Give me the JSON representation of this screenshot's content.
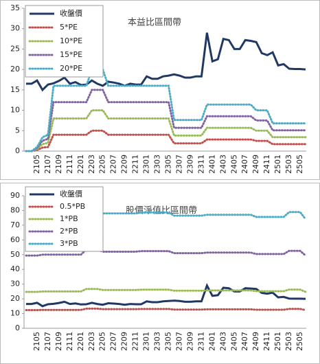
{
  "chart_data": [
    {
      "type": "line",
      "title": "本益比區間帶",
      "categories": [
        null,
        null,
        "2105",
        null,
        "2107",
        null,
        "2109",
        null,
        "2111",
        null,
        "2201",
        null,
        "2203",
        null,
        "2205",
        null,
        "2207",
        null,
        "2209",
        null,
        "2211",
        null,
        "2301",
        null,
        "2303",
        null,
        "2305",
        null,
        "2307",
        null,
        "2309",
        null,
        "2311",
        null,
        "2401",
        null,
        "2403",
        null,
        "2405",
        null,
        "2407",
        null,
        "2409",
        null,
        "2411",
        null,
        "2501",
        null,
        "2503",
        null,
        "2505",
        null
      ],
      "ylim": [
        0,
        35
      ],
      "yticks": [
        0,
        5,
        10,
        15,
        20,
        25,
        30,
        35
      ],
      "grid": false,
      "series": [
        {
          "name": "收盤價",
          "color": "#1f3864",
          "values": [
            16.5,
            16.5,
            17.3,
            15,
            16.3,
            16.6,
            17.2,
            18,
            16.5,
            16.9,
            16.2,
            16.3,
            17.3,
            16.5,
            16,
            17,
            16.8,
            16.5,
            16,
            16.5,
            16.3,
            16.3,
            18.3,
            17.7,
            17.7,
            18.3,
            18.5,
            18.8,
            18.5,
            18,
            18,
            18.3,
            18.3,
            29,
            22,
            22.5,
            27.5,
            27.2,
            25,
            25,
            27.2,
            27,
            26.7,
            24,
            23.5,
            24.2,
            21,
            21.3,
            20.2,
            20.1,
            20.1,
            20
          ]
        },
        {
          "name": "5*PE",
          "color": "#c0504d",
          "values": [
            0,
            0,
            0.25,
            0.85,
            1,
            4,
            4,
            4,
            4,
            4,
            4,
            4,
            5,
            5,
            5,
            4,
            4,
            4,
            4,
            4,
            4,
            4,
            4,
            4,
            4,
            4,
            4,
            1.9,
            1.9,
            1.9,
            1.9,
            1.9,
            1.9,
            2.85,
            2.85,
            2.85,
            2.85,
            2.85,
            2.85,
            2.85,
            2.85,
            2.85,
            2.5,
            2.5,
            2.5,
            1.7,
            1.7,
            1.7,
            1.7,
            1.7,
            1.7,
            1.7
          ]
        },
        {
          "name": "10*PE",
          "color": "#9bbb59",
          "values": [
            0,
            0,
            0.5,
            1.7,
            2,
            8,
            8,
            8,
            8,
            8,
            8,
            8,
            10,
            10,
            10,
            8,
            8,
            8,
            8,
            8,
            8,
            8,
            8,
            8,
            8,
            8,
            8,
            3.8,
            3.8,
            3.8,
            3.8,
            3.8,
            3.8,
            5.7,
            5.7,
            5.7,
            5.7,
            5.7,
            5.7,
            5.7,
            5.7,
            5.7,
            5,
            5,
            5,
            3.4,
            3.4,
            3.4,
            3.4,
            3.4,
            3.4,
            3.4
          ]
        },
        {
          "name": "15*PE",
          "color": "#8064a2",
          "values": [
            0,
            0,
            0.75,
            2.55,
            3,
            12,
            12,
            12,
            12,
            12,
            12,
            12,
            15,
            15,
            15,
            12,
            12,
            12,
            12,
            12,
            12,
            12,
            12,
            12,
            12,
            12,
            12,
            5.7,
            5.7,
            5.7,
            5.7,
            5.7,
            5.7,
            8.55,
            8.55,
            8.55,
            8.55,
            8.55,
            8.55,
            8.55,
            8.55,
            8.55,
            7.5,
            7.5,
            7.5,
            5.1,
            5.1,
            5.1,
            5.1,
            5.1,
            5.1,
            5.1
          ]
        },
        {
          "name": "20*PE",
          "color": "#4bacc6",
          "values": [
            0,
            0,
            1,
            3.4,
            4,
            16,
            16,
            16,
            16,
            16,
            16,
            16,
            20,
            20,
            20,
            16,
            16,
            16,
            16,
            16,
            16,
            16,
            16,
            16,
            16,
            16,
            16,
            7.6,
            7.6,
            7.6,
            7.6,
            7.6,
            7.6,
            11.4,
            11.4,
            11.4,
            11.4,
            11.4,
            11.4,
            11.4,
            11.4,
            11.4,
            10,
            10,
            10,
            6.8,
            6.8,
            6.8,
            6.8,
            6.8,
            6.8,
            6.8
          ]
        }
      ]
    },
    {
      "type": "line",
      "title": "股價淨值比區間帶",
      "categories": [
        null,
        null,
        "2105",
        null,
        "2107",
        null,
        "2109",
        null,
        "2111",
        null,
        "2201",
        null,
        "2203",
        null,
        "2205",
        null,
        "2207",
        null,
        "2209",
        null,
        "2211",
        null,
        "2301",
        null,
        "2303",
        null,
        "2305",
        null,
        "2307",
        null,
        "2309",
        null,
        "2311",
        null,
        "2401",
        null,
        "2403",
        null,
        "2405",
        null,
        "2407",
        null,
        "2409",
        null,
        "2411",
        null,
        "2501",
        null,
        "2503",
        null,
        "2505",
        null
      ],
      "ylim": [
        0,
        90
      ],
      "yticks": [
        0,
        10,
        20,
        30,
        40,
        50,
        60,
        70,
        80,
        90
      ],
      "grid": false,
      "series": [
        {
          "name": "收盤價",
          "color": "#1f3864",
          "values": [
            16.5,
            16.5,
            17.3,
            15,
            16.3,
            16.6,
            17.2,
            18,
            16.5,
            16.9,
            16.2,
            16.3,
            17.3,
            16.5,
            16,
            17,
            16.8,
            16.5,
            16,
            16.5,
            16.3,
            16.3,
            18.3,
            17.7,
            17.7,
            18.3,
            18.5,
            18.8,
            18.5,
            18,
            18,
            18.3,
            18.3,
            29,
            22,
            22.5,
            27.5,
            27.2,
            25,
            25,
            27.2,
            27,
            26.7,
            24,
            23.5,
            24.2,
            21,
            21.3,
            20.2,
            20.1,
            20.1,
            20
          ]
        },
        {
          "name": "0.5*PB",
          "color": "#c0504d",
          "values": [
            12.35,
            12.35,
            12.35,
            12.5,
            12.5,
            12.5,
            12.5,
            12.5,
            12.5,
            12.5,
            12.5,
            13.35,
            13.35,
            13.35,
            13,
            13,
            13,
            13,
            13,
            13,
            13,
            13.1,
            13.1,
            13.1,
            13.1,
            13.1,
            13.1,
            12.75,
            12.75,
            12.75,
            12.75,
            12.75,
            12.75,
            12.85,
            12.85,
            12.85,
            12.85,
            12.85,
            12.85,
            12.85,
            12.85,
            12.85,
            12.6,
            12.6,
            12.6,
            12.6,
            12.6,
            12.6,
            13.15,
            13.15,
            13.15,
            12.35
          ]
        },
        {
          "name": "1*PB",
          "color": "#9bbb59",
          "values": [
            24.7,
            24.7,
            24.7,
            25,
            25,
            25,
            25,
            25,
            25,
            25,
            25,
            26.7,
            26.7,
            26.7,
            26,
            26,
            26,
            26,
            26,
            26,
            26,
            26.2,
            26.2,
            26.2,
            26.2,
            26.2,
            26.2,
            25.5,
            25.5,
            25.5,
            25.5,
            25.5,
            25.5,
            25.7,
            25.7,
            25.7,
            25.7,
            25.7,
            25.7,
            25.7,
            25.7,
            25.7,
            25.2,
            25.2,
            25.2,
            25.2,
            25.2,
            25.2,
            26.3,
            26.3,
            26.3,
            24.7
          ]
        },
        {
          "name": "2*PB",
          "color": "#8064a2",
          "values": [
            49.4,
            49.4,
            49.4,
            50,
            50,
            50,
            50,
            50,
            50,
            50,
            50,
            53.4,
            53.4,
            53.4,
            52,
            52,
            52,
            52,
            52,
            52,
            52,
            52.4,
            52.4,
            52.4,
            52.4,
            52.4,
            52.4,
            51,
            51,
            51,
            51,
            51,
            51,
            51.4,
            51.4,
            51.4,
            51.4,
            51.4,
            51.4,
            51.4,
            51.4,
            51.4,
            50.4,
            50.4,
            50.4,
            50.4,
            50.4,
            50.4,
            52.6,
            52.6,
            52.6,
            49.4
          ]
        },
        {
          "name": "3*PB",
          "color": "#4bacc6",
          "values": [
            74.1,
            74.1,
            74.1,
            75,
            75,
            75,
            75,
            75,
            75,
            75,
            75,
            80.1,
            80.1,
            80.1,
            78,
            78,
            78,
            78,
            78,
            78,
            78,
            78.6,
            78.6,
            78.6,
            78.6,
            78.6,
            78.6,
            76.5,
            76.5,
            76.5,
            76.5,
            76.5,
            76.5,
            77.1,
            77.1,
            77.1,
            77.1,
            77.1,
            77.1,
            77.1,
            77.1,
            77.1,
            75.6,
            75.6,
            75.6,
            75.6,
            75.6,
            75.6,
            78.9,
            78.9,
            78.9,
            74.1
          ]
        }
      ]
    }
  ]
}
